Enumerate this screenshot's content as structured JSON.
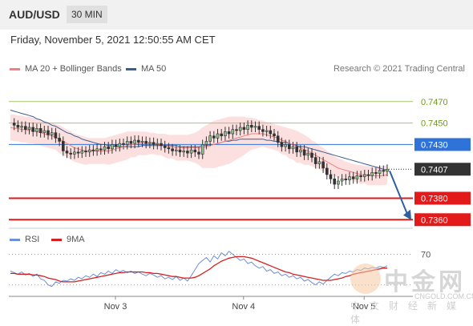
{
  "header": {
    "pair": "AUD/USD",
    "timeframe": "30 MIN",
    "datetime": "Friday, November 5, 2021 12:50:55 AM CET"
  },
  "legend": {
    "ma20": "MA 20 + Bollinger Bands",
    "ma50": "MA 50",
    "credit": "Research © 2021 Trading Central",
    "ma20_color": "#f08080",
    "ma50_color": "#3a5f8f"
  },
  "rsi_legend": {
    "rsi": "RSI",
    "ma": "9MA",
    "rsi_color": "#6f8fd6",
    "ma_color": "#d42020"
  },
  "chart_data": [
    {
      "type": "line",
      "x_tick_labels": [
        "Nov 3",
        "Nov 4",
        "Nov 5"
      ],
      "price_levels": [
        {
          "value": "0.7470",
          "kind": "resistance",
          "color": "#a8c46a"
        },
        {
          "value": "0.7450",
          "kind": "resistance",
          "color": "#a8c46a"
        },
        {
          "value": "0.7430",
          "kind": "pivot",
          "color": "#2f73d9"
        },
        {
          "value": "0.7407",
          "kind": "last",
          "color": "#333333"
        },
        {
          "value": "0.7380",
          "kind": "support",
          "color": "#e21a1a"
        },
        {
          "value": "0.7360",
          "kind": "support",
          "color": "#e21a1a"
        }
      ],
      "price": [
        0.745,
        0.7448,
        0.7446,
        0.7447,
        0.7444,
        0.7446,
        0.7442,
        0.7445,
        0.7441,
        0.7443,
        0.7439,
        0.7441,
        0.7436,
        0.7433,
        0.7424,
        0.7422,
        0.7421,
        0.7423,
        0.7422,
        0.7424,
        0.7423,
        0.7425,
        0.7424,
        0.7426,
        0.7425,
        0.7428,
        0.7426,
        0.743,
        0.7428,
        0.7431,
        0.743,
        0.7433,
        0.7431,
        0.7434,
        0.7432,
        0.7433,
        0.7431,
        0.7432,
        0.743,
        0.7431,
        0.7429,
        0.7427,
        0.7426,
        0.7424,
        0.7425,
        0.7423,
        0.7424,
        0.7422,
        0.7425,
        0.7423,
        0.7421,
        0.743,
        0.7433,
        0.7438,
        0.7436,
        0.744,
        0.7438,
        0.7442,
        0.744,
        0.7444,
        0.7443,
        0.7446,
        0.7444,
        0.7448,
        0.7446,
        0.7447,
        0.7444,
        0.7442,
        0.7443,
        0.744,
        0.7438,
        0.7432,
        0.7428,
        0.743,
        0.7426,
        0.7428,
        0.7423,
        0.7425,
        0.742,
        0.7422,
        0.7418,
        0.7412,
        0.7414,
        0.7408,
        0.7402,
        0.7398,
        0.7393,
        0.7396,
        0.7398,
        0.7397,
        0.74,
        0.7398,
        0.7401,
        0.74,
        0.7402,
        0.7401,
        0.7404,
        0.7403,
        0.7406,
        0.7405,
        0.7407
      ],
      "ma20": [
        0.7446,
        0.7445,
        0.7445,
        0.7444,
        0.7444,
        0.7443,
        0.7443,
        0.7442,
        0.7441,
        0.744,
        0.7439,
        0.7438,
        0.7437,
        0.7435,
        0.7433,
        0.7431,
        0.7429,
        0.7427,
        0.7426,
        0.7425,
        0.7424,
        0.7424,
        0.7424,
        0.7424,
        0.7424,
        0.7424,
        0.7424,
        0.7425,
        0.7426,
        0.7427,
        0.7428,
        0.7429,
        0.743,
        0.743,
        0.7431,
        0.7431,
        0.7431,
        0.7431,
        0.7431,
        0.743,
        0.743,
        0.7429,
        0.7428,
        0.7428,
        0.7427,
        0.7427,
        0.7427,
        0.7427,
        0.7427,
        0.7427,
        0.7427,
        0.7427,
        0.7428,
        0.7429,
        0.743,
        0.7431,
        0.7432,
        0.7433,
        0.7434,
        0.7435,
        0.7436,
        0.7437,
        0.7438,
        0.7439,
        0.744,
        0.744,
        0.744,
        0.744,
        0.7439,
        0.7438,
        0.7437,
        0.7436,
        0.7434,
        0.7433,
        0.7431,
        0.743,
        0.7428,
        0.7427,
        0.7425,
        0.7424,
        0.7422,
        0.742,
        0.7418,
        0.7416,
        0.7414,
        0.7412,
        0.741,
        0.7408,
        0.7407,
        0.7406,
        0.7405,
        0.7404,
        0.7403,
        0.7402,
        0.7402,
        0.7401,
        0.7401,
        0.7401,
        0.7401,
        0.7401,
        0.7402
      ],
      "ma50": [
        0.7462,
        0.7461,
        0.746,
        0.7459,
        0.7458,
        0.7457,
        0.7456,
        0.7454,
        0.7453,
        0.7451,
        0.745,
        0.7448,
        0.7447,
        0.7445,
        0.7443,
        0.7441,
        0.744,
        0.7438,
        0.7437,
        0.7435,
        0.7434,
        0.7433,
        0.7432,
        0.7431,
        0.743,
        0.743,
        0.7429,
        0.7429,
        0.7428,
        0.7428,
        0.7428,
        0.7428,
        0.7428,
        0.7428,
        0.7428,
        0.7429,
        0.7429,
        0.7429,
        0.7429,
        0.7429,
        0.7429,
        0.7429,
        0.7429,
        0.7429,
        0.7429,
        0.7428,
        0.7428,
        0.7428,
        0.7428,
        0.7428,
        0.7428,
        0.7429,
        0.7429,
        0.743,
        0.743,
        0.7431,
        0.7432,
        0.7433,
        0.7433,
        0.7434,
        0.7434,
        0.7435,
        0.7435,
        0.7435,
        0.7435,
        0.7435,
        0.7435,
        0.7435,
        0.7434,
        0.7434,
        0.7433,
        0.7433,
        0.7432,
        0.7432,
        0.7431,
        0.743,
        0.7429,
        0.7428,
        0.7428,
        0.7427,
        0.7426,
        0.7425,
        0.7424,
        0.7423,
        0.7422,
        0.7421,
        0.742,
        0.7419,
        0.7418,
        0.7417,
        0.7416,
        0.7415,
        0.7414,
        0.7413,
        0.7412,
        0.7411,
        0.741,
        0.7409,
        0.7408,
        0.7407,
        0.7406
      ],
      "bb_upper": [
        0.7458,
        0.7458,
        0.7457,
        0.7457,
        0.7456,
        0.7456,
        0.7455,
        0.7454,
        0.7453,
        0.7452,
        0.7451,
        0.745,
        0.7449,
        0.7448,
        0.7446,
        0.7444,
        0.7442,
        0.744,
        0.7439,
        0.7438,
        0.7437,
        0.7436,
        0.7436,
        0.7436,
        0.7436,
        0.7436,
        0.7437,
        0.7438,
        0.7439,
        0.744,
        0.7441,
        0.7442,
        0.7442,
        0.7442,
        0.7442,
        0.7442,
        0.7442,
        0.7441,
        0.7441,
        0.744,
        0.744,
        0.744,
        0.7439,
        0.7439,
        0.7439,
        0.7439,
        0.7439,
        0.7439,
        0.744,
        0.7441,
        0.7443,
        0.7446,
        0.7448,
        0.745,
        0.7452,
        0.7453,
        0.7454,
        0.7455,
        0.7456,
        0.7456,
        0.7456,
        0.7456,
        0.7456,
        0.7455,
        0.7455,
        0.7454,
        0.7453,
        0.7452,
        0.7451,
        0.745,
        0.7449,
        0.7448,
        0.7447,
        0.7446,
        0.7445,
        0.7444,
        0.7443,
        0.7441,
        0.7439,
        0.7437,
        0.7434,
        0.7432,
        0.7429,
        0.7427,
        0.7424,
        0.7422,
        0.7419,
        0.7417,
        0.7416,
        0.7414,
        0.7413,
        0.7412,
        0.7411,
        0.7411,
        0.741,
        0.741,
        0.741,
        0.741,
        0.741,
        0.741,
        0.7411
      ],
      "bb_lower": [
        0.7434,
        0.7433,
        0.7433,
        0.7432,
        0.7432,
        0.7431,
        0.7431,
        0.743,
        0.7429,
        0.7428,
        0.7427,
        0.7426,
        0.7425,
        0.7422,
        0.742,
        0.7418,
        0.7416,
        0.7414,
        0.7413,
        0.7412,
        0.7411,
        0.7412,
        0.7412,
        0.7412,
        0.7412,
        0.7412,
        0.7411,
        0.7412,
        0.7413,
        0.7414,
        0.7415,
        0.7416,
        0.7418,
        0.7418,
        0.742,
        0.742,
        0.742,
        0.7421,
        0.7421,
        0.742,
        0.742,
        0.7418,
        0.7417,
        0.7417,
        0.7415,
        0.7415,
        0.7415,
        0.7415,
        0.7414,
        0.7413,
        0.7411,
        0.7408,
        0.7408,
        0.7408,
        0.7408,
        0.7409,
        0.741,
        0.7411,
        0.7412,
        0.7414,
        0.7416,
        0.7418,
        0.742,
        0.7423,
        0.7425,
        0.7426,
        0.7427,
        0.7428,
        0.7427,
        0.7426,
        0.7425,
        0.7424,
        0.7421,
        0.742,
        0.7417,
        0.7416,
        0.7413,
        0.7413,
        0.7411,
        0.7411,
        0.741,
        0.7408,
        0.7407,
        0.7405,
        0.7404,
        0.7402,
        0.7401,
        0.7399,
        0.7398,
        0.7398,
        0.7397,
        0.7396,
        0.7395,
        0.7393,
        0.7394,
        0.7392,
        0.7392,
        0.7392,
        0.7392,
        0.7392,
        0.7393
      ],
      "ylim": [
        0.7352,
        0.749
      ]
    },
    {
      "type": "line",
      "subtype": "rsi",
      "level_label": "70",
      "ylim": [
        15,
        80
      ],
      "rsi": [
        48,
        46,
        44,
        47,
        43,
        45,
        41,
        44,
        38,
        36,
        30,
        28,
        34,
        32,
        36,
        35,
        38,
        36,
        40,
        38,
        42,
        40,
        44,
        41,
        46,
        44,
        48,
        45,
        50,
        47,
        49,
        46,
        48,
        45,
        47,
        44,
        42,
        45,
        43,
        40,
        42,
        38,
        40,
        37,
        41,
        36,
        39,
        35,
        42,
        50,
        58,
        62,
        66,
        60,
        68,
        64,
        72,
        68,
        74,
        70,
        66,
        62,
        64,
        58,
        60,
        55,
        52,
        54,
        48,
        50,
        45,
        47,
        42,
        44,
        40,
        42,
        38,
        40,
        35,
        37,
        33,
        30,
        34,
        31,
        36,
        40,
        44,
        42,
        46,
        45,
        48,
        47,
        50,
        49,
        52,
        51,
        53,
        52,
        54,
        53,
        55
      ],
      "ma": [
        45,
        45,
        44,
        44,
        44,
        44,
        43,
        43,
        42,
        41,
        39,
        38,
        37,
        35,
        34,
        34,
        34,
        34,
        35,
        36,
        37,
        38,
        39,
        40,
        41,
        42,
        43,
        44,
        45,
        46,
        46,
        47,
        47,
        47,
        47,
        47,
        46,
        46,
        45,
        45,
        44,
        43,
        42,
        41,
        41,
        40,
        39,
        39,
        39,
        40,
        42,
        45,
        48,
        51,
        55,
        58,
        61,
        63,
        65,
        66,
        67,
        67,
        67,
        66,
        65,
        63,
        61,
        59,
        57,
        55,
        53,
        51,
        49,
        47,
        46,
        44,
        43,
        42,
        41,
        40,
        39,
        38,
        37,
        36,
        36,
        36,
        37,
        38,
        39,
        41,
        42,
        44,
        45,
        46,
        47,
        48,
        49,
        50,
        51,
        52,
        52
      ]
    }
  ],
  "watermark": {
    "brand": "中金网",
    "site": "CNGOLD.COM.CN",
    "sub": "中文财经新媒体"
  }
}
